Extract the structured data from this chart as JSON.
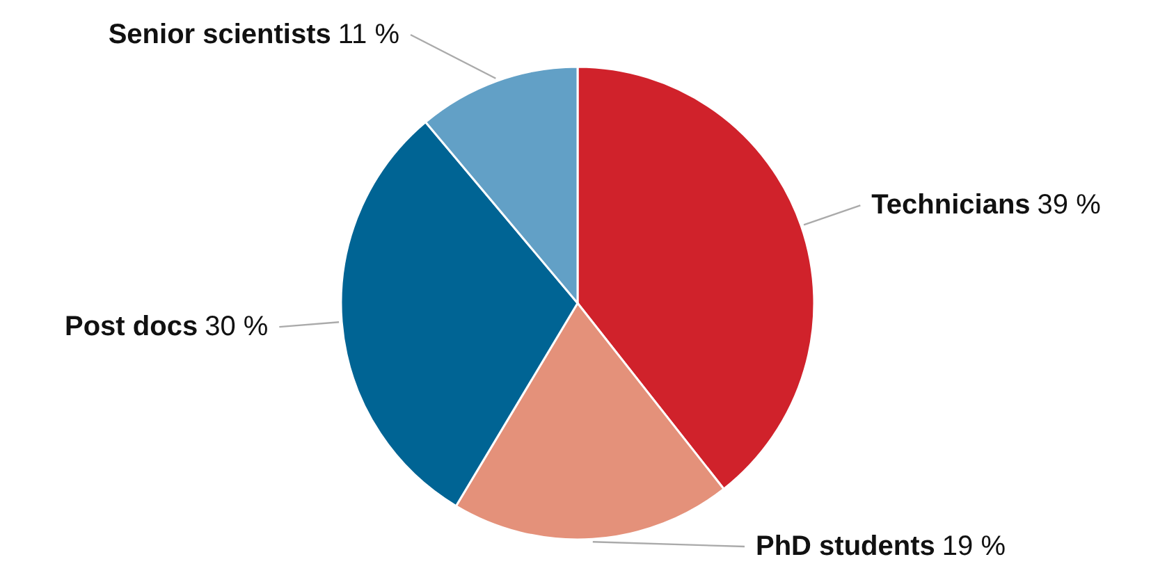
{
  "chart_data": {
    "type": "pie",
    "categories": [
      "Technicians",
      "PhD students",
      "Post docs",
      "Senior scientists"
    ],
    "values": [
      39,
      19,
      30,
      11
    ],
    "value_labels": [
      "39 %",
      "19 %",
      "30 %",
      "11 %"
    ],
    "colors": [
      "#d0222b",
      "#e4917a",
      "#006494",
      "#62a0c6"
    ]
  }
}
